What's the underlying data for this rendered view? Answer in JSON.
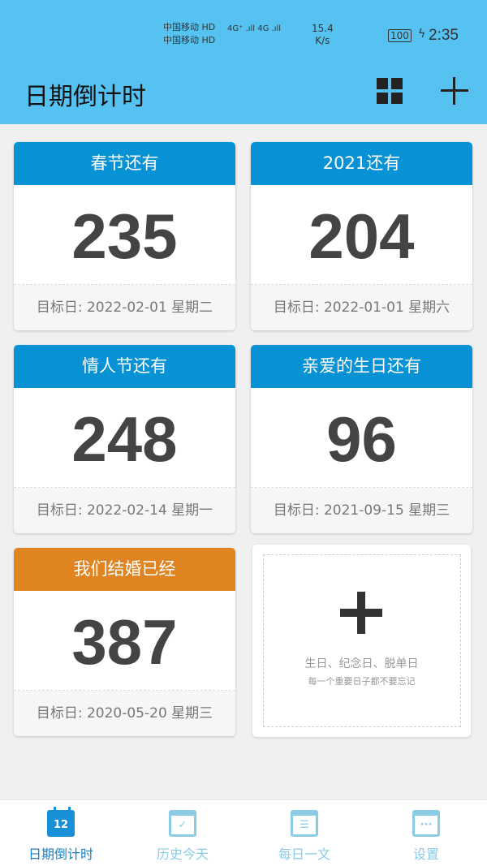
{
  "status_bar": {
    "carrier1": "中国移动 HD",
    "carrier2": "中国移动 HD",
    "signal": "4G⁺ .ıll 4G .ıll",
    "speed": "15.4",
    "speed_unit": "K/s",
    "battery": "100",
    "time": "2:35"
  },
  "header": {
    "title": "日期倒计时"
  },
  "cards": [
    {
      "title": "春节还有",
      "days": "235",
      "target": "目标日: 2022-02-01 星期二",
      "color": "#0892d6"
    },
    {
      "title": "2021还有",
      "days": "204",
      "target": "目标日: 2022-01-01 星期六",
      "color": "#0892d6"
    },
    {
      "title": "情人节还有",
      "days": "248",
      "target": "目标日: 2022-02-14 星期一",
      "color": "#0892d6"
    },
    {
      "title": "亲爱的生日还有",
      "days": "96",
      "target": "目标日: 2021-09-15 星期三",
      "color": "#0892d6"
    },
    {
      "title": "我们结婚已经",
      "days": "387",
      "target": "目标日: 2020-05-20 星期三",
      "color": "#e08422"
    }
  ],
  "add_card": {
    "line1": "生日、纪念日、脱单日",
    "line2": "每一个重要日子都不要忘记"
  },
  "nav": [
    {
      "label": "日期倒计时",
      "icon_text": "12",
      "active": true
    },
    {
      "label": "历史今天",
      "icon_text": "✓"
    },
    {
      "label": "每日一文",
      "icon_text": "☰"
    },
    {
      "label": "设置",
      "icon_text": "···"
    }
  ]
}
